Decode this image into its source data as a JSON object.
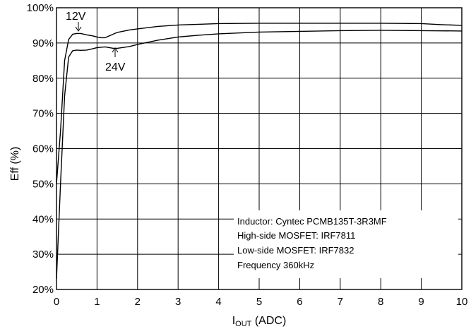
{
  "chart_data": {
    "type": "line",
    "title": "",
    "xlabel": {
      "main": "I",
      "sub": "OUT",
      "unit": " (ADC)"
    },
    "ylabel": "Eff (%)",
    "xlim": [
      0,
      10
    ],
    "ylim": [
      20,
      100
    ],
    "x_ticks": [
      "0",
      "1",
      "2",
      "3",
      "4",
      "5",
      "6",
      "7",
      "8",
      "9",
      "10"
    ],
    "y_ticks": [
      "20%",
      "30%",
      "40%",
      "50%",
      "60%",
      "70%",
      "80%",
      "90%",
      "100%"
    ],
    "grid": true,
    "series": [
      {
        "name": "12V",
        "x": [
          0,
          0.1,
          0.2,
          0.3,
          0.4,
          0.5,
          0.6,
          0.75,
          0.9,
          1.0,
          1.1,
          1.2,
          1.3,
          1.5,
          1.8,
          2,
          2.5,
          3,
          3.5,
          4,
          5,
          6,
          7,
          8,
          9,
          9.5,
          10
        ],
        "y": [
          50,
          65,
          85,
          91,
          92.5,
          92.7,
          92.7,
          92.3,
          92,
          91.7,
          91.5,
          91.5,
          92,
          93,
          93.7,
          94,
          94.7,
          95.1,
          95.3,
          95.5,
          95.6,
          95.6,
          95.6,
          95.6,
          95.5,
          95.2,
          95
        ]
      },
      {
        "name": "24V",
        "x": [
          0,
          0.1,
          0.2,
          0.3,
          0.4,
          0.5,
          0.6,
          0.75,
          0.9,
          1.0,
          1.2,
          1.4,
          1.5,
          1.8,
          2,
          2.5,
          3,
          3.5,
          4,
          5,
          6,
          7,
          8,
          9,
          10
        ],
        "y": [
          23,
          50,
          75,
          86,
          87.8,
          88,
          87.9,
          88,
          88.4,
          88.7,
          88.9,
          88.5,
          88.5,
          89,
          89.6,
          90.8,
          91.7,
          92.2,
          92.6,
          93.1,
          93.3,
          93.5,
          93.6,
          93.5,
          93.4
        ]
      }
    ],
    "annotations": {
      "label_12v": "12V",
      "label_24v": "24V",
      "info": [
        "Inductor:  Cyntec  PCMB135T-3R3MF",
        "High-side MOSFET:  IRF7811",
        "Low-side MOSFET:  IRF7832",
        "Frequency  360kHz"
      ]
    }
  }
}
